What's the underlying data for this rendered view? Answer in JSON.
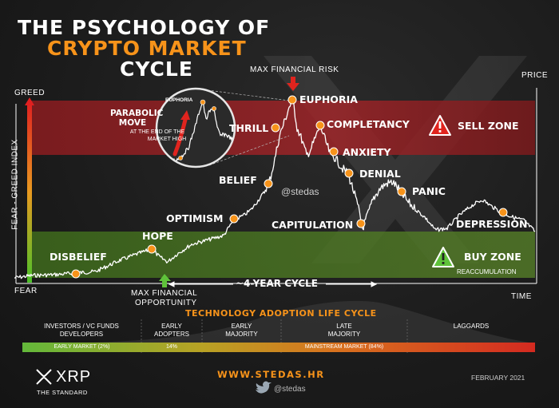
{
  "title": {
    "line1": "THE PSYCHOLOGY OF",
    "line2": "CRYPTO MARKET",
    "line3": "CYCLE"
  },
  "axes": {
    "greed": "GREED",
    "fear": "FEAR",
    "index_label": "FEAR - GREED INDEX",
    "price": "PRICE",
    "time": "TIME"
  },
  "cycle_label": "~4-YEAR CYCLE",
  "max_risk": "MAX FINANCIAL RISK",
  "max_opportunity": {
    "line1": "MAX FINANCIAL",
    "line2": "OPPORTUNITY"
  },
  "stages": {
    "disbelief": "DISBELIEF",
    "hope": "HOPE",
    "optimism": "OPTIMISM",
    "belief": "BELIEF",
    "thrill": "THRILL",
    "euphoria": "EUPHORIA",
    "complacency": "COMPLETANCY",
    "anxiety": "ANXIETY",
    "denial": "DENIAL",
    "capitulation": "CAPITULATION",
    "panic": "PANIC",
    "depression": "DEPRESSION"
  },
  "zones": {
    "sell": "SELL ZONE",
    "buy": "BUY ZONE",
    "reaccumulation": "REACCUMULATION"
  },
  "watermark": "@stedas",
  "inset": {
    "euphoria": "EUPHORIA",
    "parabolic_title": {
      "line1": "PARABOLIC",
      "line2": "MOVE"
    },
    "parabolic_sub": {
      "line1": "AT THE END OF THE",
      "line2": "MARKET HIGH"
    }
  },
  "adoption": {
    "title": "TECHNOLOGY ADOPTION LIFE CYCLE",
    "groups": [
      {
        "line1": "INVESTORS / VC FUNDS",
        "line2": "DEVELOPERS"
      },
      {
        "line1": "EARLY",
        "line2": "ADOPTERS"
      },
      {
        "line1": "EARLY",
        "line2": "MAJORITY"
      },
      {
        "line1": "LATE",
        "line2": "MAJORITY"
      },
      {
        "line1": "LAGGARDS",
        "line2": ""
      }
    ],
    "bar": {
      "early_market": "EARLY MARKET (2%)",
      "pct14": "14%",
      "mainstream": "MAINSTREAM MARKET (84%)"
    }
  },
  "footer": {
    "logo": "XRP",
    "logo_sub": "THE STANDARD",
    "website": "WWW.STEDAS.HR",
    "twitter": "@stedas",
    "date": "FEBRUARY 2021"
  },
  "colors": {
    "accent": "#f7931a",
    "sell": "#c0272d",
    "buy": "#5a8f2a"
  }
}
